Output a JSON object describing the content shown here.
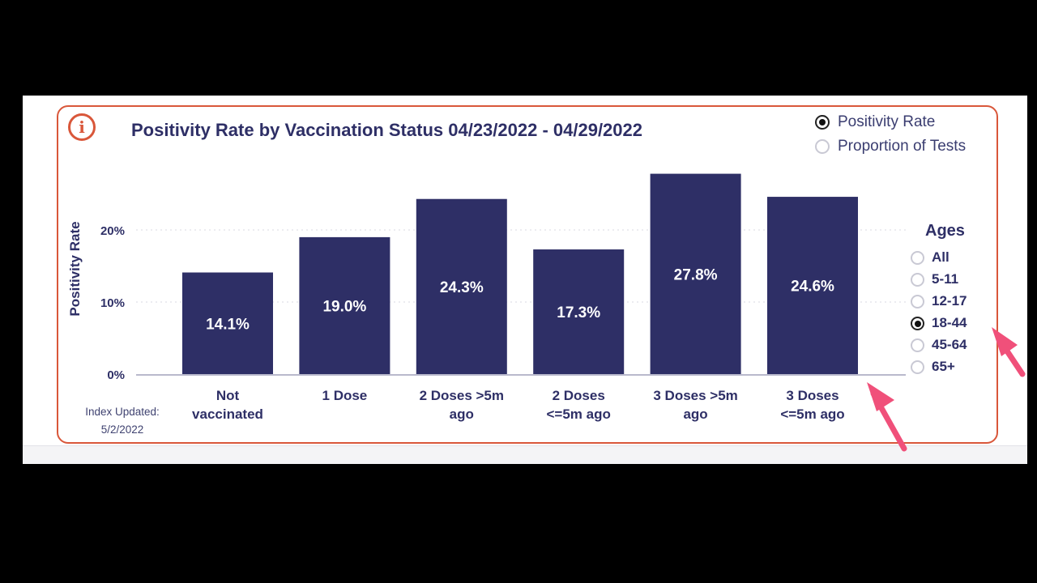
{
  "title": "Positivity Rate by Vaccination Status 04/23/2022 - 04/29/2022",
  "metric_options": [
    {
      "label": "Positivity Rate",
      "selected": true
    },
    {
      "label": "Proportion of Tests",
      "selected": false
    }
  ],
  "ages": {
    "title": "Ages",
    "options": [
      {
        "label": "All",
        "selected": false
      },
      {
        "label": "5-11",
        "selected": false
      },
      {
        "label": "12-17",
        "selected": false
      },
      {
        "label": "18-44",
        "selected": true
      },
      {
        "label": "45-64",
        "selected": false
      },
      {
        "label": "65+",
        "selected": false
      }
    ]
  },
  "index_updated": {
    "label": "Index Updated:",
    "date": "5/2/2022"
  },
  "colors": {
    "bar": "#2e2f66",
    "accent": "#d9573a",
    "annotation_arrow": "#f0507a"
  },
  "chart_data": {
    "type": "bar",
    "ylabel": "Positivity Rate",
    "xlabel": "",
    "ylim": [
      0,
      30
    ],
    "yticks": [
      0,
      10,
      20
    ],
    "ytick_labels": [
      "0%",
      "10%",
      "20%"
    ],
    "grid": true,
    "categories": [
      [
        "Not",
        "vaccinated"
      ],
      [
        "1 Dose"
      ],
      [
        "2 Doses >5m",
        "ago"
      ],
      [
        "2 Doses",
        "<=5m ago"
      ],
      [
        "3 Doses >5m",
        "ago"
      ],
      [
        "3 Doses",
        "<=5m ago"
      ]
    ],
    "values": [
      14.1,
      19.0,
      24.3,
      17.3,
      27.8,
      24.6
    ],
    "value_labels": [
      "14.1%",
      "19.0%",
      "24.3%",
      "17.3%",
      "27.8%",
      "24.6%"
    ]
  }
}
